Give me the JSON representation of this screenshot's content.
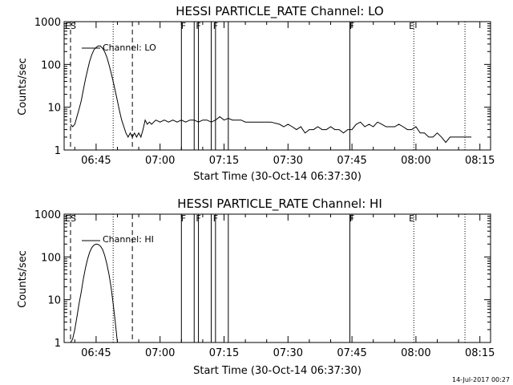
{
  "chart_data": [
    {
      "type": "line",
      "title": "HESSI PARTICLE_RATE Channel: LO",
      "xlabel": "Start Time (30-Oct-14 06:37:30)",
      "ylabel": "Counts/sec",
      "x_ticks": [
        "06:45",
        "07:00",
        "07:15",
        "07:30",
        "07:45",
        "08:00",
        "08:15"
      ],
      "y_ticks": [
        "1",
        "10",
        "100",
        "1000"
      ],
      "y_scale": "log",
      "xlim": [
        "06:37:30",
        "08:17:30"
      ],
      "ylim": [
        1,
        1000
      ],
      "legend": "Channel: LO",
      "legend_position": "top-left",
      "series": [
        {
          "name": "Channel: LO",
          "x": [
            "06:39:00",
            "06:39:30",
            "06:40:00",
            "06:40:30",
            "06:41:00",
            "06:41:30",
            "06:42:00",
            "06:42:30",
            "06:43:00",
            "06:43:30",
            "06:44:00",
            "06:44:30",
            "06:45:00",
            "06:45:30",
            "06:46:00",
            "06:46:30",
            "06:47:00",
            "06:47:30",
            "06:48:00",
            "06:48:30",
            "06:49:00",
            "06:49:30",
            "06:50:00",
            "06:50:30",
            "06:51:00",
            "06:51:30",
            "06:52:00",
            "06:52:30",
            "06:53:00",
            "06:53:30",
            "06:54:00",
            "06:54:30",
            "06:55:00",
            "06:55:30",
            "06:56:00",
            "06:56:30",
            "06:57:00",
            "06:57:30",
            "06:58:00",
            "06:59:00",
            "07:00:00",
            "07:01:00",
            "07:02:00",
            "07:03:00",
            "07:04:00",
            "07:05:00",
            "07:06:00",
            "07:07:00",
            "07:08:00",
            "07:09:00",
            "07:10:00",
            "07:11:00",
            "07:12:00",
            "07:13:00",
            "07:14:00",
            "07:15:00",
            "07:16:00",
            "07:17:00",
            "07:18:00",
            "07:19:00",
            "07:20:00",
            "07:22:00",
            "07:24:00",
            "07:26:00",
            "07:28:00",
            "07:29:00",
            "07:30:00",
            "07:31:00",
            "07:32:00",
            "07:33:00",
            "07:34:00",
            "07:35:00",
            "07:36:00",
            "07:37:00",
            "07:38:00",
            "07:39:00",
            "07:40:00",
            "07:41:00",
            "07:42:00",
            "07:43:00",
            "07:44:00",
            "07:45:00",
            "07:46:00",
            "07:47:00",
            "07:48:00",
            "07:49:00",
            "07:50:00",
            "07:51:00",
            "07:52:00",
            "07:53:00",
            "07:54:00",
            "07:55:00",
            "07:56:00",
            "07:57:00",
            "07:58:00",
            "07:59:00",
            "08:00:00",
            "08:01:00",
            "08:02:00",
            "08:03:00",
            "08:04:00",
            "08:05:00",
            "08:06:00",
            "08:07:00",
            "08:08:00",
            "08:09:00",
            "08:10:00",
            "08:11:00",
            "08:12:00",
            "08:13:00"
          ],
          "y": [
            4,
            3.5,
            4,
            6,
            9,
            14,
            25,
            45,
            75,
            120,
            170,
            220,
            250,
            270,
            270,
            240,
            200,
            150,
            100,
            65,
            40,
            24,
            14,
            8,
            5,
            3.5,
            2.5,
            2,
            2.5,
            2,
            2.5,
            2,
            2.5,
            2,
            3,
            5,
            4,
            4.5,
            4,
            5,
            4.5,
            5,
            4.5,
            5,
            4.5,
            5,
            4.5,
            5,
            5,
            4.5,
            5,
            5,
            4.5,
            5,
            6,
            5,
            5.5,
            5,
            5,
            5,
            4.5,
            4.5,
            4.5,
            4.5,
            4,
            3.5,
            4,
            3.5,
            3,
            3.5,
            2.5,
            3,
            3,
            3.5,
            3,
            3,
            3.5,
            3,
            3,
            2.5,
            3,
            3,
            4,
            4.5,
            3.5,
            4,
            3.5,
            4.5,
            4,
            3.5,
            3.5,
            3.5,
            4,
            3.5,
            3,
            3,
            3.5,
            2.5,
            2.5,
            2,
            2,
            2.5,
            2,
            1.5,
            2,
            2,
            2,
            2,
            2,
            2
          ]
        }
      ],
      "flag_labels": [
        "ES",
        "F",
        "F",
        "F",
        "F",
        "E"
      ],
      "flag_times": [
        "06:39:00",
        "07:05:30",
        "07:09:00",
        "07:13:00",
        "07:45:00",
        "07:59:00"
      ],
      "solid_lines": [
        "07:05:00",
        "07:08:00",
        "07:09:00",
        "07:12:00",
        "07:13:00",
        "07:16:00",
        "07:44:30"
      ],
      "dashed_lines": [
        "06:39:00",
        "06:53:30"
      ],
      "dotted_lines": [
        "06:49:00",
        "07:59:30",
        "08:11:30"
      ]
    },
    {
      "type": "line",
      "title": "HESSI PARTICLE_RATE Channel: HI",
      "xlabel": "Start Time (30-Oct-14 06:37:30)",
      "ylabel": "Counts/sec",
      "x_ticks": [
        "06:45",
        "07:00",
        "07:15",
        "07:30",
        "07:45",
        "08:00",
        "08:15"
      ],
      "y_ticks": [
        "1",
        "10",
        "100",
        "1000"
      ],
      "y_scale": "log",
      "xlim": [
        "06:37:30",
        "08:17:30"
      ],
      "ylim": [
        1,
        1000
      ],
      "legend": "Channel: HI",
      "legend_position": "top-left",
      "series": [
        {
          "name": "Channel: HI",
          "x": [
            "06:39:00",
            "06:39:30",
            "06:40:00",
            "06:40:30",
            "06:41:00",
            "06:41:30",
            "06:42:00",
            "06:42:30",
            "06:43:00",
            "06:43:30",
            "06:44:00",
            "06:44:30",
            "06:45:00",
            "06:45:30",
            "06:46:00",
            "06:46:30",
            "06:47:00",
            "06:47:30",
            "06:48:00",
            "06:48:30",
            "06:49:00",
            "06:49:30",
            "06:50:00"
          ],
          "y": [
            1,
            1.2,
            2,
            4,
            8,
            15,
            30,
            55,
            90,
            130,
            165,
            190,
            200,
            195,
            180,
            150,
            110,
            70,
            40,
            20,
            8,
            3,
            1
          ]
        }
      ],
      "flag_labels": [
        "ES",
        "F",
        "F",
        "F",
        "F",
        "E"
      ],
      "flag_times": [
        "06:39:00",
        "07:05:30",
        "07:09:00",
        "07:13:00",
        "07:45:00",
        "07:59:00"
      ],
      "solid_lines": [
        "07:05:00",
        "07:08:00",
        "07:09:00",
        "07:12:00",
        "07:13:00",
        "07:16:00",
        "07:44:30"
      ],
      "dashed_lines": [
        "06:39:00",
        "06:53:30"
      ],
      "dotted_lines": [
        "06:49:00",
        "07:59:30",
        "08:11:30"
      ]
    }
  ],
  "footer": {
    "timestamp": "14-Jul-2017 00:27"
  }
}
